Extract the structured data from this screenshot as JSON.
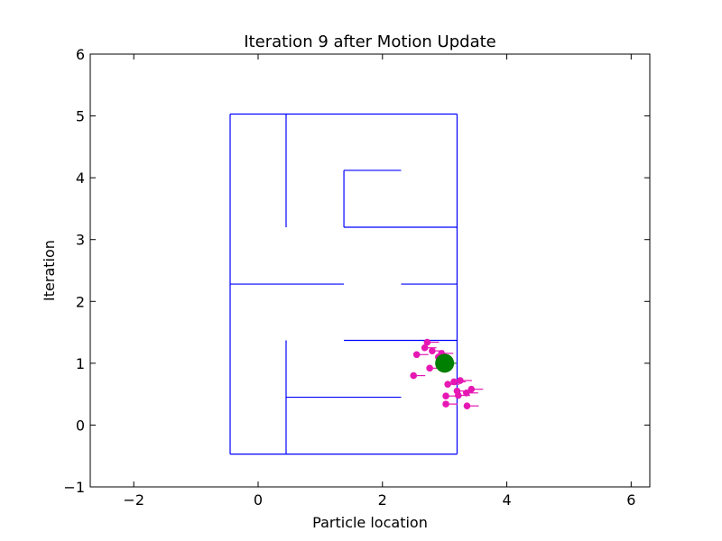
{
  "chart_data": {
    "type": "scatter",
    "title": "Iteration 9 after Motion Update",
    "xlabel": "Particle location",
    "ylabel": "Iteration",
    "xlim": [
      -2.7,
      6.3
    ],
    "ylim": [
      -1,
      6
    ],
    "xticks": [
      -2,
      0,
      2,
      4,
      6
    ],
    "yticks": [
      -1,
      0,
      1,
      2,
      3,
      4,
      5,
      6
    ],
    "grid": false,
    "colors": {
      "walls": "#0000ff",
      "particles": "#e617b3",
      "robot": "#008000",
      "frame": "#000000"
    },
    "walls": [
      [
        [
          -0.45,
          -0.47
        ],
        [
          3.2,
          -0.47
        ]
      ],
      [
        [
          -0.45,
          5.03
        ],
        [
          3.2,
          5.03
        ]
      ],
      [
        [
          -0.45,
          -0.47
        ],
        [
          -0.45,
          5.03
        ]
      ],
      [
        [
          3.2,
          -0.47
        ],
        [
          3.2,
          5.03
        ]
      ],
      [
        [
          0.45,
          3.2
        ],
        [
          0.45,
          5.03
        ]
      ],
      [
        [
          1.38,
          3.2
        ],
        [
          1.38,
          4.12
        ]
      ],
      [
        [
          1.38,
          4.12
        ],
        [
          2.3,
          4.12
        ]
      ],
      [
        [
          1.38,
          3.2
        ],
        [
          3.2,
          3.2
        ]
      ],
      [
        [
          -0.45,
          2.28
        ],
        [
          1.38,
          2.28
        ]
      ],
      [
        [
          2.3,
          2.28
        ],
        [
          3.2,
          2.28
        ]
      ],
      [
        [
          1.38,
          1.37
        ],
        [
          3.2,
          1.37
        ]
      ],
      [
        [
          0.45,
          -0.47
        ],
        [
          0.45,
          1.37
        ]
      ],
      [
        [
          0.45,
          0.45
        ],
        [
          2.3,
          0.45
        ]
      ]
    ],
    "robot": {
      "x": 3.0,
      "y": 1.0,
      "heading": 0
    },
    "particles": [
      {
        "x": 2.72,
        "y": 1.34,
        "heading": 0
      },
      {
        "x": 2.68,
        "y": 1.25,
        "heading": 0
      },
      {
        "x": 2.8,
        "y": 1.2,
        "heading": 0
      },
      {
        "x": 2.55,
        "y": 1.14,
        "heading": 0
      },
      {
        "x": 2.9,
        "y": 1.1,
        "heading": 0
      },
      {
        "x": 2.95,
        "y": 1.16,
        "heading": 0
      },
      {
        "x": 2.93,
        "y": 1.02,
        "heading": 0
      },
      {
        "x": 2.76,
        "y": 0.92,
        "heading": 0
      },
      {
        "x": 2.5,
        "y": 0.8,
        "heading": 0
      },
      {
        "x": 3.25,
        "y": 0.72,
        "heading": 0
      },
      {
        "x": 3.15,
        "y": 0.7,
        "heading": 0
      },
      {
        "x": 3.05,
        "y": 0.66,
        "heading": 0
      },
      {
        "x": 3.43,
        "y": 0.58,
        "heading": 0
      },
      {
        "x": 3.35,
        "y": 0.52,
        "heading": 0
      },
      {
        "x": 3.2,
        "y": 0.55,
        "heading": 0
      },
      {
        "x": 3.22,
        "y": 0.48,
        "heading": 0
      },
      {
        "x": 3.02,
        "y": 0.47,
        "heading": 0
      },
      {
        "x": 3.02,
        "y": 0.34,
        "heading": 0
      },
      {
        "x": 3.36,
        "y": 0.31,
        "heading": 0
      }
    ]
  }
}
